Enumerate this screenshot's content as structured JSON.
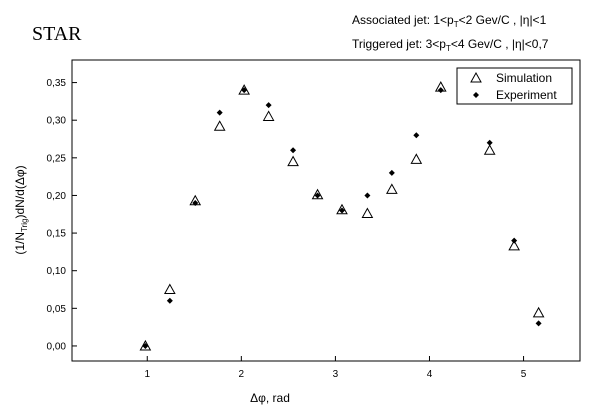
{
  "chart_data": {
    "type": "scatter",
    "title": "",
    "corner_label": "STAR",
    "annotations": {
      "associated": {
        "pre": "Associated jet: 1<p",
        "sub": "T",
        "post": "<2 Gev/C , |η|<1"
      },
      "triggered": {
        "pre": "Triggered jet: 3<p",
        "sub": "T",
        "post": "<4 Gev/C , |η|<0,7"
      }
    },
    "xlabel": "Δφ, rad",
    "ylabel": {
      "pre": "(1/N",
      "sub": "Trig",
      "post": ")dN/d(Δφ)"
    },
    "xlim": [
      0.2,
      5.6
    ],
    "ylim": [
      -0.02,
      0.38
    ],
    "x_ticks": [
      1,
      2,
      3,
      4,
      5
    ],
    "x_tick_labels": [
      "1",
      "2",
      "3",
      "4",
      "5"
    ],
    "y_ticks": [
      0.0,
      0.05,
      0.1,
      0.15,
      0.2,
      0.25,
      0.3,
      0.35
    ],
    "y_tick_labels": [
      "0,00",
      "0,05",
      "0,10",
      "0,15",
      "0,20",
      "0,25",
      "0,30",
      "0,35"
    ],
    "grid": false,
    "legend_position": "top-right",
    "series": [
      {
        "name": "Simulation",
        "marker": "open-triangle",
        "color": "#000000",
        "x": [
          0.98,
          1.24,
          1.51,
          1.77,
          2.03,
          2.29,
          2.55,
          2.81,
          3.07,
          3.34,
          3.6,
          3.86,
          4.12,
          4.38,
          4.64,
          4.9,
          5.16
        ],
        "y": [
          0.0,
          0.075,
          0.193,
          0.292,
          0.34,
          0.305,
          0.245,
          0.201,
          0.181,
          0.176,
          0.208,
          0.248,
          0.344,
          0.333,
          0.26,
          0.133,
          0.044
        ]
      },
      {
        "name": "Experiment",
        "marker": "filled-diamond",
        "color": "#000000",
        "x": [
          0.98,
          1.24,
          1.51,
          1.77,
          2.03,
          2.29,
          2.55,
          2.81,
          3.07,
          3.34,
          3.6,
          3.86,
          4.12,
          4.38,
          4.64,
          4.9,
          5.16
        ],
        "y": [
          0.0,
          0.06,
          0.19,
          0.31,
          0.34,
          0.32,
          0.26,
          0.2,
          0.18,
          0.2,
          0.23,
          0.28,
          0.34,
          0.34,
          0.27,
          0.14,
          0.03
        ]
      }
    ]
  }
}
